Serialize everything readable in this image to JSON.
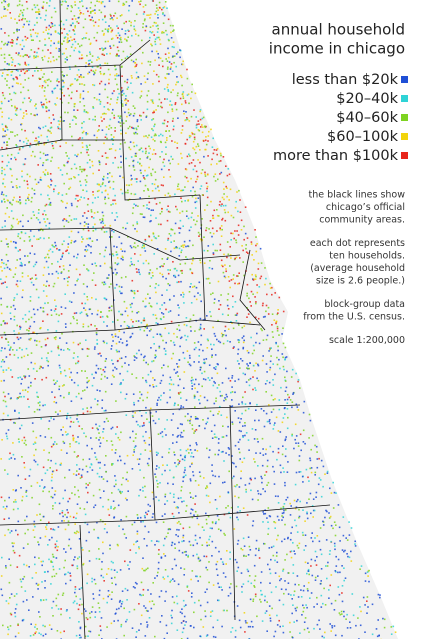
{
  "title": [
    "annual household",
    "income in chicago"
  ],
  "legend": [
    {
      "label": "less than $20k",
      "color": "#1f4fd6"
    },
    {
      "label": "$20–40k",
      "color": "#2fd3d6"
    },
    {
      "label": "$40–60k",
      "color": "#7ed321"
    },
    {
      "label": "$60–100k",
      "color": "#f2d40c"
    },
    {
      "label": "more than $100k",
      "color": "#e8251c"
    }
  ],
  "notes": [
    [
      "the black lines show",
      "chicago’s official",
      "community areas."
    ],
    [
      "each dot represents",
      "ten households.",
      "(average household",
      "size is 2.6 people.)"
    ],
    [
      "block-group data",
      "from the U.S. census."
    ],
    [
      "scale 1:200,000"
    ]
  ]
}
